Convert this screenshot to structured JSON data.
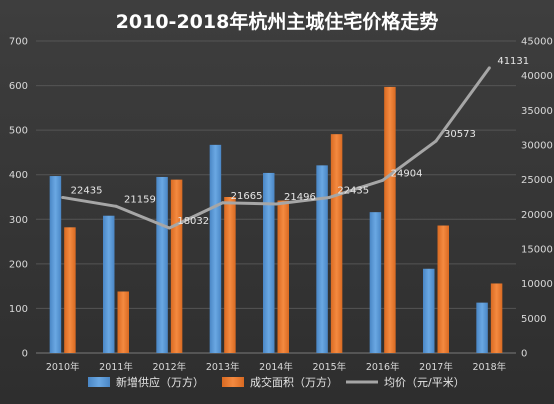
{
  "chart_data": {
    "type": "bar",
    "title": "2010-2018年杭州主城住宅价格走势",
    "categories": [
      "2010年",
      "2011年",
      "2012年",
      "2013年",
      "2014年",
      "2015年",
      "2016年",
      "2017年",
      "2018年"
    ],
    "series": [
      {
        "name": "新增供应（万方）",
        "kind": "bar",
        "axis": "left",
        "color": "#5b9bd5",
        "values": [
          397,
          308,
          395,
          467,
          404,
          421,
          316,
          189,
          113
        ]
      },
      {
        "name": "成交面积（万方）",
        "kind": "bar",
        "axis": "left",
        "color": "#ed7d31",
        "values": [
          282,
          138,
          389,
          350,
          342,
          491,
          597,
          286,
          156
        ]
      },
      {
        "name": "均价（元/平米）",
        "kind": "line",
        "axis": "right",
        "color": "#a5a5a5",
        "values": [
          22435,
          21159,
          18032,
          21665,
          21496,
          22435,
          24904,
          30573,
          41131
        ],
        "labels": [
          "22435",
          "21159",
          "18032",
          "21665",
          "21496",
          "22435",
          "24904",
          "30573",
          "41131"
        ]
      }
    ],
    "y_left": {
      "min": 0,
      "max": 700,
      "ticks": [
        "0",
        "100",
        "200",
        "300",
        "400",
        "500",
        "600",
        "700"
      ]
    },
    "y_right": {
      "min": 0,
      "max": 45000,
      "ticks": [
        "0",
        "5000",
        "10000",
        "15000",
        "20000",
        "25000",
        "30000",
        "35000",
        "40000",
        "45000"
      ]
    },
    "grid": true,
    "legend_position": "bottom"
  }
}
